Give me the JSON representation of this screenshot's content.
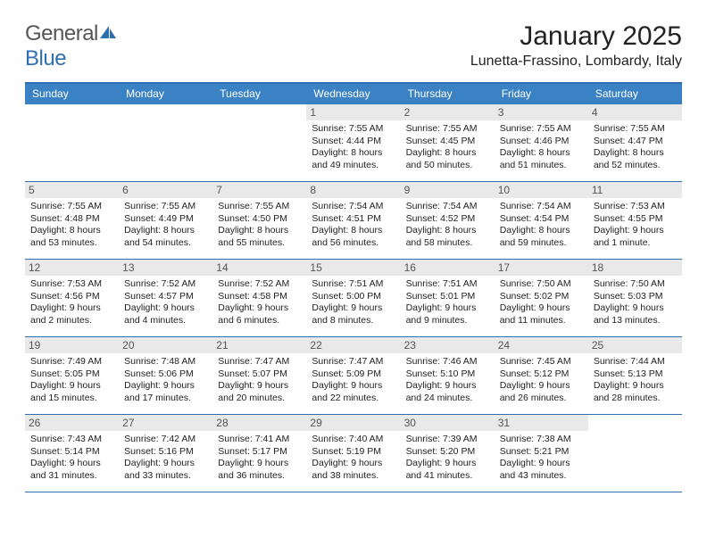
{
  "logo": {
    "textGeneral": "General",
    "textBlue": "Blue"
  },
  "title": "January 2025",
  "location": "Lunetta-Frassino, Lombardy, Italy",
  "colors": {
    "header_bg": "#3a82c4",
    "header_border": "#2f6fb0",
    "weekday_text": "#ffffff",
    "daynum_bg": "#e9e9ea",
    "daynum_text": "#555555",
    "body_text": "#222222",
    "logo_gray": "#555555",
    "logo_blue": "#2f6fb0"
  },
  "typography": {
    "title_fontsize": 30,
    "location_fontsize": 16,
    "weekday_fontsize": 12,
    "daynum_fontsize": 12,
    "detail_fontsize": 10.5
  },
  "weekdays": [
    "Sunday",
    "Monday",
    "Tuesday",
    "Wednesday",
    "Thursday",
    "Friday",
    "Saturday"
  ],
  "weeks": [
    [
      null,
      null,
      null,
      {
        "n": "1",
        "sunrise": "7:55 AM",
        "sunset": "4:44 PM",
        "daylight1": "Daylight: 8 hours",
        "daylight2": "and 49 minutes."
      },
      {
        "n": "2",
        "sunrise": "7:55 AM",
        "sunset": "4:45 PM",
        "daylight1": "Daylight: 8 hours",
        "daylight2": "and 50 minutes."
      },
      {
        "n": "3",
        "sunrise": "7:55 AM",
        "sunset": "4:46 PM",
        "daylight1": "Daylight: 8 hours",
        "daylight2": "and 51 minutes."
      },
      {
        "n": "4",
        "sunrise": "7:55 AM",
        "sunset": "4:47 PM",
        "daylight1": "Daylight: 8 hours",
        "daylight2": "and 52 minutes."
      }
    ],
    [
      {
        "n": "5",
        "sunrise": "7:55 AM",
        "sunset": "4:48 PM",
        "daylight1": "Daylight: 8 hours",
        "daylight2": "and 53 minutes."
      },
      {
        "n": "6",
        "sunrise": "7:55 AM",
        "sunset": "4:49 PM",
        "daylight1": "Daylight: 8 hours",
        "daylight2": "and 54 minutes."
      },
      {
        "n": "7",
        "sunrise": "7:55 AM",
        "sunset": "4:50 PM",
        "daylight1": "Daylight: 8 hours",
        "daylight2": "and 55 minutes."
      },
      {
        "n": "8",
        "sunrise": "7:54 AM",
        "sunset": "4:51 PM",
        "daylight1": "Daylight: 8 hours",
        "daylight2": "and 56 minutes."
      },
      {
        "n": "9",
        "sunrise": "7:54 AM",
        "sunset": "4:52 PM",
        "daylight1": "Daylight: 8 hours",
        "daylight2": "and 58 minutes."
      },
      {
        "n": "10",
        "sunrise": "7:54 AM",
        "sunset": "4:54 PM",
        "daylight1": "Daylight: 8 hours",
        "daylight2": "and 59 minutes."
      },
      {
        "n": "11",
        "sunrise": "7:53 AM",
        "sunset": "4:55 PM",
        "daylight1": "Daylight: 9 hours",
        "daylight2": "and 1 minute."
      }
    ],
    [
      {
        "n": "12",
        "sunrise": "7:53 AM",
        "sunset": "4:56 PM",
        "daylight1": "Daylight: 9 hours",
        "daylight2": "and 2 minutes."
      },
      {
        "n": "13",
        "sunrise": "7:52 AM",
        "sunset": "4:57 PM",
        "daylight1": "Daylight: 9 hours",
        "daylight2": "and 4 minutes."
      },
      {
        "n": "14",
        "sunrise": "7:52 AM",
        "sunset": "4:58 PM",
        "daylight1": "Daylight: 9 hours",
        "daylight2": "and 6 minutes."
      },
      {
        "n": "15",
        "sunrise": "7:51 AM",
        "sunset": "5:00 PM",
        "daylight1": "Daylight: 9 hours",
        "daylight2": "and 8 minutes."
      },
      {
        "n": "16",
        "sunrise": "7:51 AM",
        "sunset": "5:01 PM",
        "daylight1": "Daylight: 9 hours",
        "daylight2": "and 9 minutes."
      },
      {
        "n": "17",
        "sunrise": "7:50 AM",
        "sunset": "5:02 PM",
        "daylight1": "Daylight: 9 hours",
        "daylight2": "and 11 minutes."
      },
      {
        "n": "18",
        "sunrise": "7:50 AM",
        "sunset": "5:03 PM",
        "daylight1": "Daylight: 9 hours",
        "daylight2": "and 13 minutes."
      }
    ],
    [
      {
        "n": "19",
        "sunrise": "7:49 AM",
        "sunset": "5:05 PM",
        "daylight1": "Daylight: 9 hours",
        "daylight2": "and 15 minutes."
      },
      {
        "n": "20",
        "sunrise": "7:48 AM",
        "sunset": "5:06 PM",
        "daylight1": "Daylight: 9 hours",
        "daylight2": "and 17 minutes."
      },
      {
        "n": "21",
        "sunrise": "7:47 AM",
        "sunset": "5:07 PM",
        "daylight1": "Daylight: 9 hours",
        "daylight2": "and 20 minutes."
      },
      {
        "n": "22",
        "sunrise": "7:47 AM",
        "sunset": "5:09 PM",
        "daylight1": "Daylight: 9 hours",
        "daylight2": "and 22 minutes."
      },
      {
        "n": "23",
        "sunrise": "7:46 AM",
        "sunset": "5:10 PM",
        "daylight1": "Daylight: 9 hours",
        "daylight2": "and 24 minutes."
      },
      {
        "n": "24",
        "sunrise": "7:45 AM",
        "sunset": "5:12 PM",
        "daylight1": "Daylight: 9 hours",
        "daylight2": "and 26 minutes."
      },
      {
        "n": "25",
        "sunrise": "7:44 AM",
        "sunset": "5:13 PM",
        "daylight1": "Daylight: 9 hours",
        "daylight2": "and 28 minutes."
      }
    ],
    [
      {
        "n": "26",
        "sunrise": "7:43 AM",
        "sunset": "5:14 PM",
        "daylight1": "Daylight: 9 hours",
        "daylight2": "and 31 minutes."
      },
      {
        "n": "27",
        "sunrise": "7:42 AM",
        "sunset": "5:16 PM",
        "daylight1": "Daylight: 9 hours",
        "daylight2": "and 33 minutes."
      },
      {
        "n": "28",
        "sunrise": "7:41 AM",
        "sunset": "5:17 PM",
        "daylight1": "Daylight: 9 hours",
        "daylight2": "and 36 minutes."
      },
      {
        "n": "29",
        "sunrise": "7:40 AM",
        "sunset": "5:19 PM",
        "daylight1": "Daylight: 9 hours",
        "daylight2": "and 38 minutes."
      },
      {
        "n": "30",
        "sunrise": "7:39 AM",
        "sunset": "5:20 PM",
        "daylight1": "Daylight: 9 hours",
        "daylight2": "and 41 minutes."
      },
      {
        "n": "31",
        "sunrise": "7:38 AM",
        "sunset": "5:21 PM",
        "daylight1": "Daylight: 9 hours",
        "daylight2": "and 43 minutes."
      },
      null
    ]
  ]
}
